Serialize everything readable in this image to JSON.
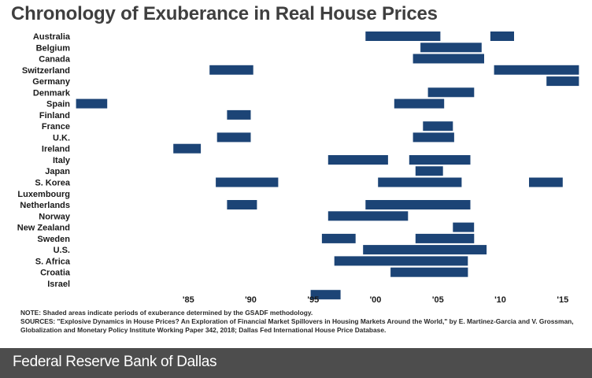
{
  "title": "Chronology of Exuberance in Real House Prices",
  "chart_data": {
    "type": "timeline",
    "title": "Chronology of Exuberance in Real House Prices",
    "xlim": [
      1975.9,
      2016.4
    ],
    "ticks": [
      1985,
      1990,
      1995,
      2000,
      2005,
      2010,
      2015
    ],
    "tick_labels": [
      "'85",
      "'90",
      "'95",
      "'00",
      "'05",
      "'10",
      "'15"
    ],
    "rows": [
      {
        "country": "Australia",
        "periods": [
          [
            1999.2,
            2005.2
          ],
          [
            2009.2,
            2011.1
          ]
        ]
      },
      {
        "country": "Belgium",
        "periods": [
          [
            2003.6,
            2008.5
          ]
        ]
      },
      {
        "country": "Canada",
        "periods": [
          [
            2003.0,
            2008.7
          ]
        ]
      },
      {
        "country": "Switzerland",
        "periods": [
          [
            1986.7,
            1990.2
          ],
          [
            2009.5,
            2016.3
          ]
        ]
      },
      {
        "country": "Germany",
        "periods": [
          [
            2013.7,
            2016.3
          ]
        ]
      },
      {
        "country": "Denmark",
        "periods": [
          [
            2004.2,
            2007.9
          ]
        ]
      },
      {
        "country": "Spain",
        "periods": [
          [
            1976.0,
            1978.5
          ],
          [
            2001.5,
            2005.5
          ]
        ]
      },
      {
        "country": "Finland",
        "periods": [
          [
            1988.1,
            1990.0
          ]
        ]
      },
      {
        "country": "France",
        "periods": [
          [
            2003.8,
            2006.2
          ]
        ]
      },
      {
        "country": "U.K.",
        "periods": [
          [
            1987.3,
            1990.0
          ],
          [
            2003.0,
            2006.3
          ]
        ]
      },
      {
        "country": "Ireland",
        "periods": [
          [
            1983.8,
            1986.0
          ]
        ]
      },
      {
        "country": "Italy",
        "periods": [
          [
            1996.2,
            2001.0
          ],
          [
            2002.7,
            2007.6
          ]
        ]
      },
      {
        "country": "Japan",
        "periods": [
          [
            2003.2,
            2005.4
          ]
        ]
      },
      {
        "country": "S. Korea",
        "periods": [
          [
            1987.2,
            1992.2
          ],
          [
            2000.2,
            2006.9
          ],
          [
            2012.3,
            2015.0
          ]
        ]
      },
      {
        "country": "Luxembourg",
        "periods": []
      },
      {
        "country": "Netherlands",
        "periods": [
          [
            1988.1,
            1990.5
          ],
          [
            1999.2,
            2007.6
          ]
        ]
      },
      {
        "country": "Norway",
        "periods": [
          [
            1996.2,
            2002.6
          ]
        ]
      },
      {
        "country": "New Zealand",
        "periods": [
          [
            2006.2,
            2007.9
          ]
        ]
      },
      {
        "country": "Sweden",
        "periods": [
          [
            1995.7,
            1998.4
          ],
          [
            2003.2,
            2007.9
          ]
        ]
      },
      {
        "country": "U.S.",
        "periods": [
          [
            1999.0,
            2008.9
          ]
        ]
      },
      {
        "country": "S. Africa",
        "periods": [
          [
            1996.7,
            2007.4
          ]
        ]
      },
      {
        "country": "Croatia",
        "periods": [
          [
            2001.2,
            2007.4
          ]
        ]
      },
      {
        "country": "Israel",
        "periods": []
      },
      {
        "country": "",
        "periods": [
          [
            1994.8,
            1997.2
          ]
        ]
      }
    ]
  },
  "notes": {
    "note": "NOTE: Shaded areas indicate periods of exuberance determined by the GSADF methodology.",
    "sources": "SOURCES: \"Explosive Dynamics in House Prices? An Exploration of Financial Market Spillovers in Housing Markets Around the World,\" by E. Martinez-Garcia and V. Grossman, Globalization and Monetary Policy Institute Working Paper 342, 2018; Dallas Fed International House Price Database."
  },
  "footer": {
    "label": "Federal Reserve Bank of Dallas"
  },
  "colors": {
    "bar": "#1c4476",
    "footer": "#4d4d4d"
  }
}
